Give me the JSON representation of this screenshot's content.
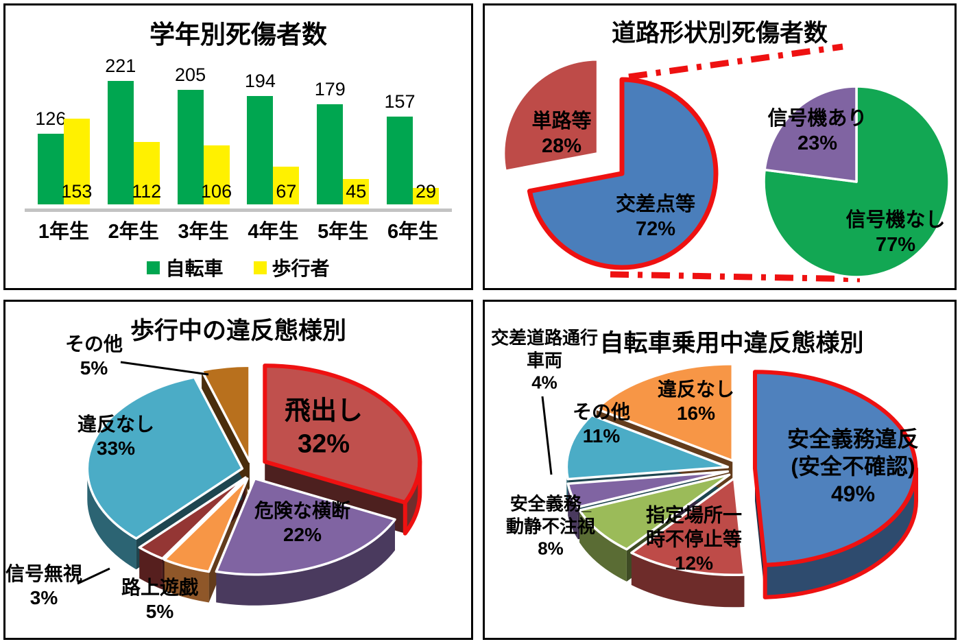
{
  "accent_red": "#ee1111",
  "leader_line_color": "#000000",
  "chart_data": [
    {
      "type": "bar",
      "title": "学年別死傷者数",
      "categories": [
        "1年生",
        "2年生",
        "3年生",
        "4年生",
        "5年生",
        "6年生"
      ],
      "series": [
        {
          "name": "自転車",
          "color": "#00A650",
          "values": [
            126,
            221,
            205,
            194,
            179,
            157
          ]
        },
        {
          "name": "歩行者",
          "color": "#FFF100",
          "values": [
            153,
            112,
            106,
            67,
            45,
            29
          ]
        }
      ],
      "ylim": [
        0,
        230
      ],
      "grid": false,
      "legend_position": "bottom",
      "axis_line_color": "#c3c3c3"
    },
    {
      "type": "pie",
      "title": "道路形状別死傷者数",
      "accent_color": "#ee1111",
      "callout_style": "red dash-dot lines linking left pie slice to right pie",
      "pies": [
        {
          "name": "road-shape",
          "slices": [
            {
              "label": "交差点等",
              "pct": 72,
              "color": "#4A7EBB",
              "highlight": true
            },
            {
              "label": "単路等",
              "pct": 28,
              "color": "#BE4B48",
              "exploded": true
            }
          ]
        },
        {
          "name": "signal-presence",
          "slices": [
            {
              "label": "信号機なし",
              "pct": 77,
              "color": "#12A753"
            },
            {
              "label": "信号機あり",
              "pct": 23,
              "color": "#8064A2"
            }
          ]
        }
      ]
    },
    {
      "type": "pie3d",
      "title": "歩行中の違反態様別",
      "accent_color": "#ee1111",
      "slices": [
        {
          "label": "飛出し",
          "pct": 32,
          "color": "#C0504D",
          "highlight": true
        },
        {
          "label": "危険な横断",
          "pct": 22,
          "color": "#8064A2"
        },
        {
          "label": "路上遊戯",
          "pct": 5,
          "color": "#F79646"
        },
        {
          "label": "信号無視",
          "pct": 3,
          "color": "#943634"
        },
        {
          "label": "違反なし",
          "pct": 33,
          "color": "#4BACC6"
        },
        {
          "label": "その他",
          "pct": 5,
          "color": "#B8701D"
        }
      ]
    },
    {
      "type": "pie3d",
      "title": "自転車乗用中違反態様別",
      "accent_color": "#ee1111",
      "slices": [
        {
          "label": "安全義務違反(安全不確認)",
          "label_lines": [
            "安全義務違反",
            "(安全不確認)"
          ],
          "pct": 49,
          "color": "#4F81BD",
          "highlight": true
        },
        {
          "label": "指定場所一時不停止等",
          "label_lines": [
            "指定場所一",
            "時不停止等"
          ],
          "pct": 12,
          "color": "#BE4B48"
        },
        {
          "label": "安全義務_動静不注視",
          "label_lines": [
            "安全義務_",
            "動静不注視"
          ],
          "pct": 8,
          "color": "#9BBB59"
        },
        {
          "label": "交差道路通行車両",
          "label_lines": [
            "交差道路通行",
            "車両"
          ],
          "pct": 4,
          "color": "#8064A2"
        },
        {
          "label": "その他",
          "pct": 11,
          "color": "#4BACC6"
        },
        {
          "label": "違反なし",
          "pct": 16,
          "color": "#F79646"
        }
      ]
    }
  ]
}
